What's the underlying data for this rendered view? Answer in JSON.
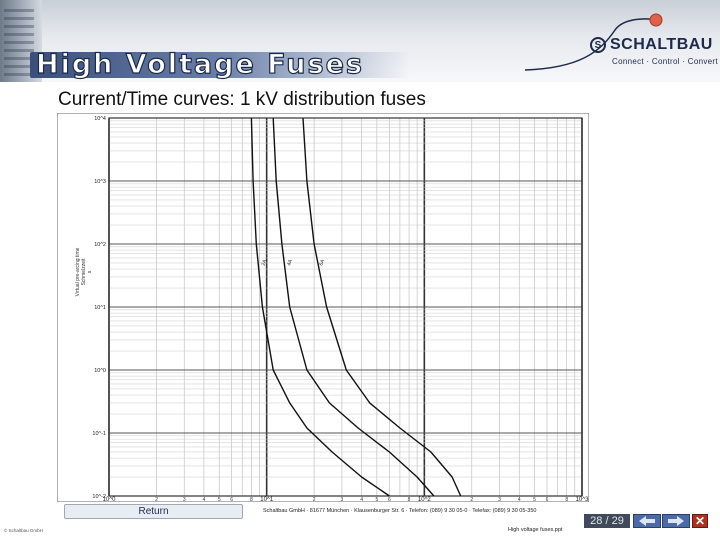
{
  "header": {
    "title": "High Voltage Fuses",
    "logo_text": "SCHALTBAU",
    "tagline": "Connect · Control · Convert"
  },
  "subtitle": "Current/Time curves: 1 kV distribution fuses",
  "chart_data": {
    "type": "line",
    "xscale": "log",
    "yscale": "log",
    "xlim": [
      1,
      1000
    ],
    "ylim": [
      0.01,
      10000
    ],
    "x_major_ticks": [
      "10^0",
      "10^1",
      "10^2",
      "10^3"
    ],
    "x_minor_ticks": [
      "2",
      "3",
      "4",
      "5",
      "6",
      "8"
    ],
    "y_major_ticks": [
      "10^4",
      "10^3",
      "10^2",
      "10^1",
      "10^0",
      "10^-1",
      "10^-2"
    ],
    "ylabel_lines": [
      "Virtual pre-arcing time",
      "Schmelzzeit",
      "s"
    ],
    "series": [
      {
        "name": "2A",
        "x": [
          8.0,
          8.2,
          8.6,
          9.4,
          11,
          14,
          18,
          26,
          40,
          60
        ],
        "y": [
          10000,
          1000,
          100,
          10,
          1,
          0.3,
          0.12,
          0.05,
          0.02,
          0.01
        ]
      },
      {
        "name": "4A",
        "x": [
          11,
          11.5,
          12.5,
          14,
          18,
          25,
          38,
          60,
          90,
          115
        ],
        "y": [
          10000,
          1000,
          100,
          10,
          1,
          0.3,
          0.12,
          0.05,
          0.02,
          0.01
        ]
      },
      {
        "name": "6A",
        "x": [
          17,
          18,
          20,
          24,
          32,
          45,
          70,
          110,
          150,
          170
        ],
        "y": [
          10000,
          1000,
          100,
          10,
          1,
          0.3,
          0.12,
          0.05,
          0.02,
          0.01
        ]
      }
    ],
    "grid": true
  },
  "return_label": "Return",
  "footer": {
    "address": "Schaltbau GmbH · 81677 München · Klausenburger Str. 6 · Telefon: (089) 9 30 05-0 · Telefax: (089) 9 30 05-350",
    "filename": "High voltage fuses.ppt",
    "copyright": "© Schaltbau GmbH",
    "page": "28 / 29"
  },
  "colors": {
    "header_navy": "#1d2b4a",
    "nav_blue": "#4a6aa8",
    "close_red": "#b03020"
  },
  "icons": {
    "prev": "left-arrow-icon",
    "next": "right-arrow-icon",
    "close": "close-icon"
  }
}
